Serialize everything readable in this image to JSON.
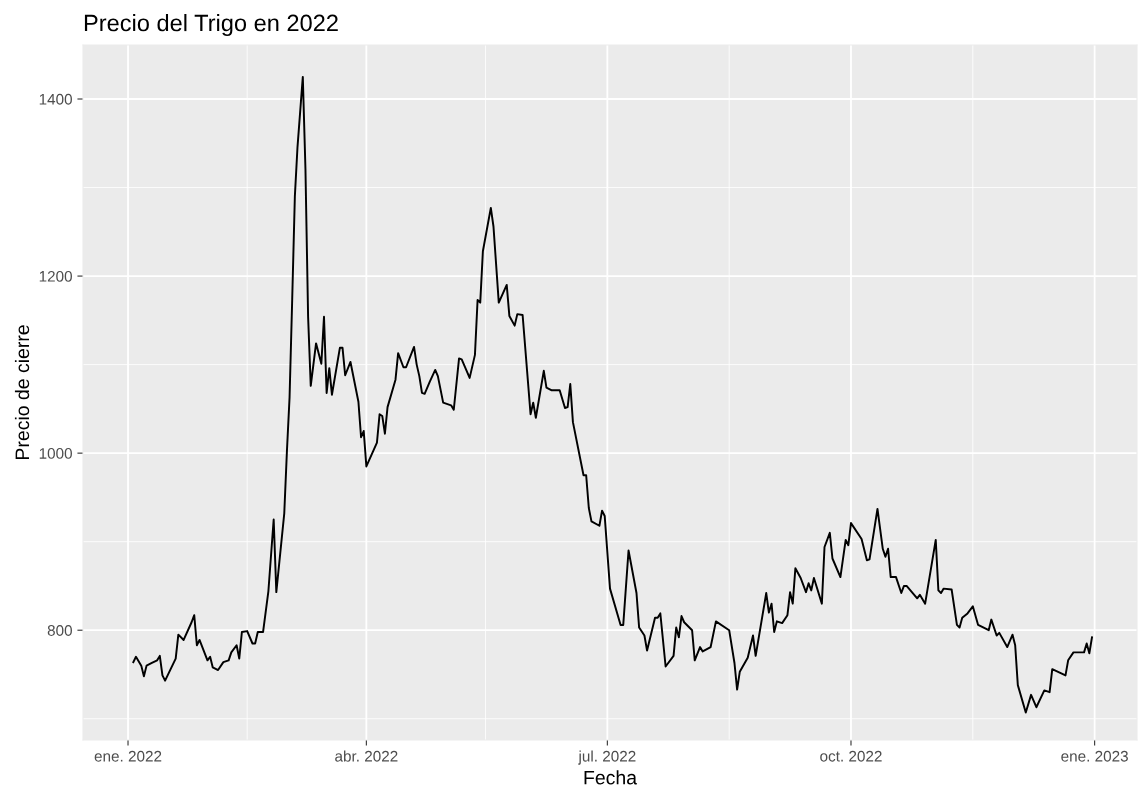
{
  "chart_data": {
    "type": "line",
    "title": "Precio del Trigo en 2022",
    "xlabel": "Fecha",
    "ylabel": "Precio de cierre",
    "x": [
      "2022-01-03",
      "2022-01-04",
      "2022-01-06",
      "2022-01-07",
      "2022-01-08",
      "2022-01-10",
      "2022-01-12",
      "2022-01-13",
      "2022-01-14",
      "2022-01-15",
      "2022-01-19",
      "2022-01-20",
      "2022-01-22",
      "2022-01-25",
      "2022-01-26",
      "2022-01-27",
      "2022-01-28",
      "2022-01-31",
      "2022-02-01",
      "2022-02-02",
      "2022-02-04",
      "2022-02-06",
      "2022-02-08",
      "2022-02-09",
      "2022-02-11",
      "2022-02-12",
      "2022-02-13",
      "2022-02-15",
      "2022-02-17",
      "2022-02-18",
      "2022-02-19",
      "2022-02-21",
      "2022-02-23",
      "2022-02-25",
      "2022-02-26",
      "2022-03-01",
      "2022-03-02",
      "2022-03-03",
      "2022-03-04",
      "2022-03-05",
      "2022-03-06",
      "2022-03-08",
      "2022-03-09",
      "2022-03-10",
      "2022-03-11",
      "2022-03-13",
      "2022-03-15",
      "2022-03-16",
      "2022-03-17",
      "2022-03-18",
      "2022-03-19",
      "2022-03-22",
      "2022-03-23",
      "2022-03-24",
      "2022-03-26",
      "2022-03-29",
      "2022-03-30",
      "2022-03-31",
      "2022-04-01",
      "2022-04-05",
      "2022-04-06",
      "2022-04-07",
      "2022-04-08",
      "2022-04-09",
      "2022-04-12",
      "2022-04-13",
      "2022-04-15",
      "2022-04-16",
      "2022-04-19",
      "2022-04-20",
      "2022-04-21",
      "2022-04-22",
      "2022-04-23",
      "2022-04-25",
      "2022-04-27",
      "2022-04-28",
      "2022-04-30",
      "2022-05-03",
      "2022-05-04",
      "2022-05-06",
      "2022-05-07",
      "2022-05-10",
      "2022-05-12",
      "2022-05-13",
      "2022-05-14",
      "2022-05-15",
      "2022-05-18",
      "2022-05-19",
      "2022-05-21",
      "2022-05-24",
      "2022-05-25",
      "2022-05-27",
      "2022-05-28",
      "2022-05-30",
      "2022-06-02",
      "2022-06-03",
      "2022-06-04",
      "2022-06-07",
      "2022-06-08",
      "2022-06-10",
      "2022-06-13",
      "2022-06-15",
      "2022-06-16",
      "2022-06-17",
      "2022-06-18",
      "2022-06-22",
      "2022-06-23",
      "2022-06-24",
      "2022-06-25",
      "2022-06-28",
      "2022-06-29",
      "2022-06-30",
      "2022-07-02",
      "2022-07-06",
      "2022-07-07",
      "2022-07-09",
      "2022-07-12",
      "2022-07-13",
      "2022-07-15",
      "2022-07-16",
      "2022-07-19",
      "2022-07-20",
      "2022-07-21",
      "2022-07-23",
      "2022-07-26",
      "2022-07-27",
      "2022-07-28",
      "2022-07-29",
      "2022-07-30",
      "2022-08-02",
      "2022-08-03",
      "2022-08-05",
      "2022-08-06",
      "2022-08-09",
      "2022-08-11",
      "2022-08-16",
      "2022-08-18",
      "2022-08-19",
      "2022-08-20",
      "2022-08-23",
      "2022-08-25",
      "2022-08-26",
      "2022-08-30",
      "2022-08-31",
      "2022-09-01",
      "2022-09-02",
      "2022-09-03",
      "2022-09-05",
      "2022-09-07",
      "2022-09-08",
      "2022-09-09",
      "2022-09-10",
      "2022-09-12",
      "2022-09-14",
      "2022-09-15",
      "2022-09-16",
      "2022-09-17",
      "2022-09-20",
      "2022-09-21",
      "2022-09-23",
      "2022-09-24",
      "2022-09-27",
      "2022-09-29",
      "2022-09-30",
      "2022-10-01",
      "2022-10-05",
      "2022-10-07",
      "2022-10-08",
      "2022-10-11",
      "2022-10-13",
      "2022-10-14",
      "2022-10-15",
      "2022-10-16",
      "2022-10-18",
      "2022-10-20",
      "2022-10-21",
      "2022-10-22",
      "2022-10-26",
      "2022-10-27",
      "2022-10-29",
      "2022-11-02",
      "2022-11-03",
      "2022-11-04",
      "2022-11-05",
      "2022-11-08",
      "2022-11-10",
      "2022-11-11",
      "2022-11-12",
      "2022-11-14",
      "2022-11-16",
      "2022-11-18",
      "2022-11-22",
      "2022-11-23",
      "2022-11-25",
      "2022-11-26",
      "2022-11-29",
      "2022-12-01",
      "2022-12-02",
      "2022-12-03",
      "2022-12-06",
      "2022-12-08",
      "2022-12-10",
      "2022-12-13",
      "2022-12-15",
      "2022-12-16",
      "2022-12-21",
      "2022-12-22",
      "2022-12-24",
      "2022-12-28",
      "2022-12-29",
      "2022-12-30",
      "2022-12-31"
    ],
    "series": [
      {
        "color": "#000000",
        "values": [
          764,
          770,
          760,
          748,
          760,
          763,
          766,
          771,
          749,
          743,
          768,
          795,
          789,
          809,
          817,
          783,
          789,
          766,
          770,
          758,
          755,
          764,
          766,
          775,
          783,
          768,
          798,
          799,
          785,
          785,
          798,
          798,
          844,
          925,
          843,
          932,
          1002,
          1063,
          1174,
          1290,
          1346,
          1425,
          1321,
          1154,
          1076,
          1124,
          1101,
          1154,
          1068,
          1096,
          1066,
          1119,
          1119,
          1088,
          1103,
          1058,
          1018,
          1025,
          985,
          1012,
          1044,
          1042,
          1022,
          1052,
          1083,
          1113,
          1097,
          1097,
          1120,
          1100,
          1087,
          1068,
          1067,
          1081,
          1094,
          1087,
          1057,
          1054,
          1049,
          1107,
          1106,
          1085,
          1111,
          1173,
          1170,
          1228,
          1277,
          1256,
          1170,
          1190,
          1155,
          1144,
          1157,
          1156,
          1044,
          1057,
          1040,
          1093,
          1074,
          1071,
          1071,
          1051,
          1052,
          1078,
          1035,
          975,
          975,
          938,
          923,
          918,
          935,
          929,
          847,
          806,
          806,
          890,
          842,
          803,
          794,
          777,
          814,
          814,
          819,
          759,
          771,
          803,
          792,
          816,
          809,
          800,
          766,
          781,
          776,
          781,
          810,
          800,
          763,
          733,
          753,
          769,
          794,
          771,
          842,
          820,
          830,
          798,
          810,
          808,
          817,
          843,
          830,
          870,
          859,
          843,
          853,
          845,
          859,
          830,
          894,
          910,
          881,
          860,
          902,
          896,
          921,
          903,
          879,
          880,
          937,
          892,
          883,
          892,
          860,
          860,
          842,
          850,
          850,
          836,
          840,
          830,
          902,
          845,
          842,
          847,
          846,
          806,
          803,
          814,
          819,
          827,
          806,
          800,
          812,
          794,
          797,
          781,
          795,
          783,
          738,
          707,
          727,
          713,
          732,
          730,
          756,
          749,
          766,
          775,
          775,
          785,
          774,
          792
        ]
      }
    ],
    "xlim": [
      "2021-12-15",
      "2023-01-17"
    ],
    "xticks": [
      {
        "value": "2022-01-01",
        "label": "ene. 2022"
      },
      {
        "value": "2022-02-15",
        "label": null
      },
      {
        "value": "2022-04-01",
        "label": "abr. 2022"
      },
      {
        "value": "2022-05-16",
        "label": null
      },
      {
        "value": "2022-07-01",
        "label": "jul. 2022"
      },
      {
        "value": "2022-08-16",
        "label": null
      },
      {
        "value": "2022-10-01",
        "label": "oct. 2022"
      },
      {
        "value": "2022-11-16",
        "label": null
      },
      {
        "value": "2023-01-01",
        "label": "ene. 2023"
      }
    ],
    "ylim": [
      676,
      1461
    ],
    "yticks": [
      {
        "value": 700,
        "label": null
      },
      800,
      {
        "value": 900,
        "label": null
      },
      1000,
      {
        "value": 1100,
        "label": null
      },
      1200,
      {
        "value": 1300,
        "label": null
      },
      1400
    ],
    "grid": true,
    "line_style": "solid",
    "marker": "none"
  }
}
